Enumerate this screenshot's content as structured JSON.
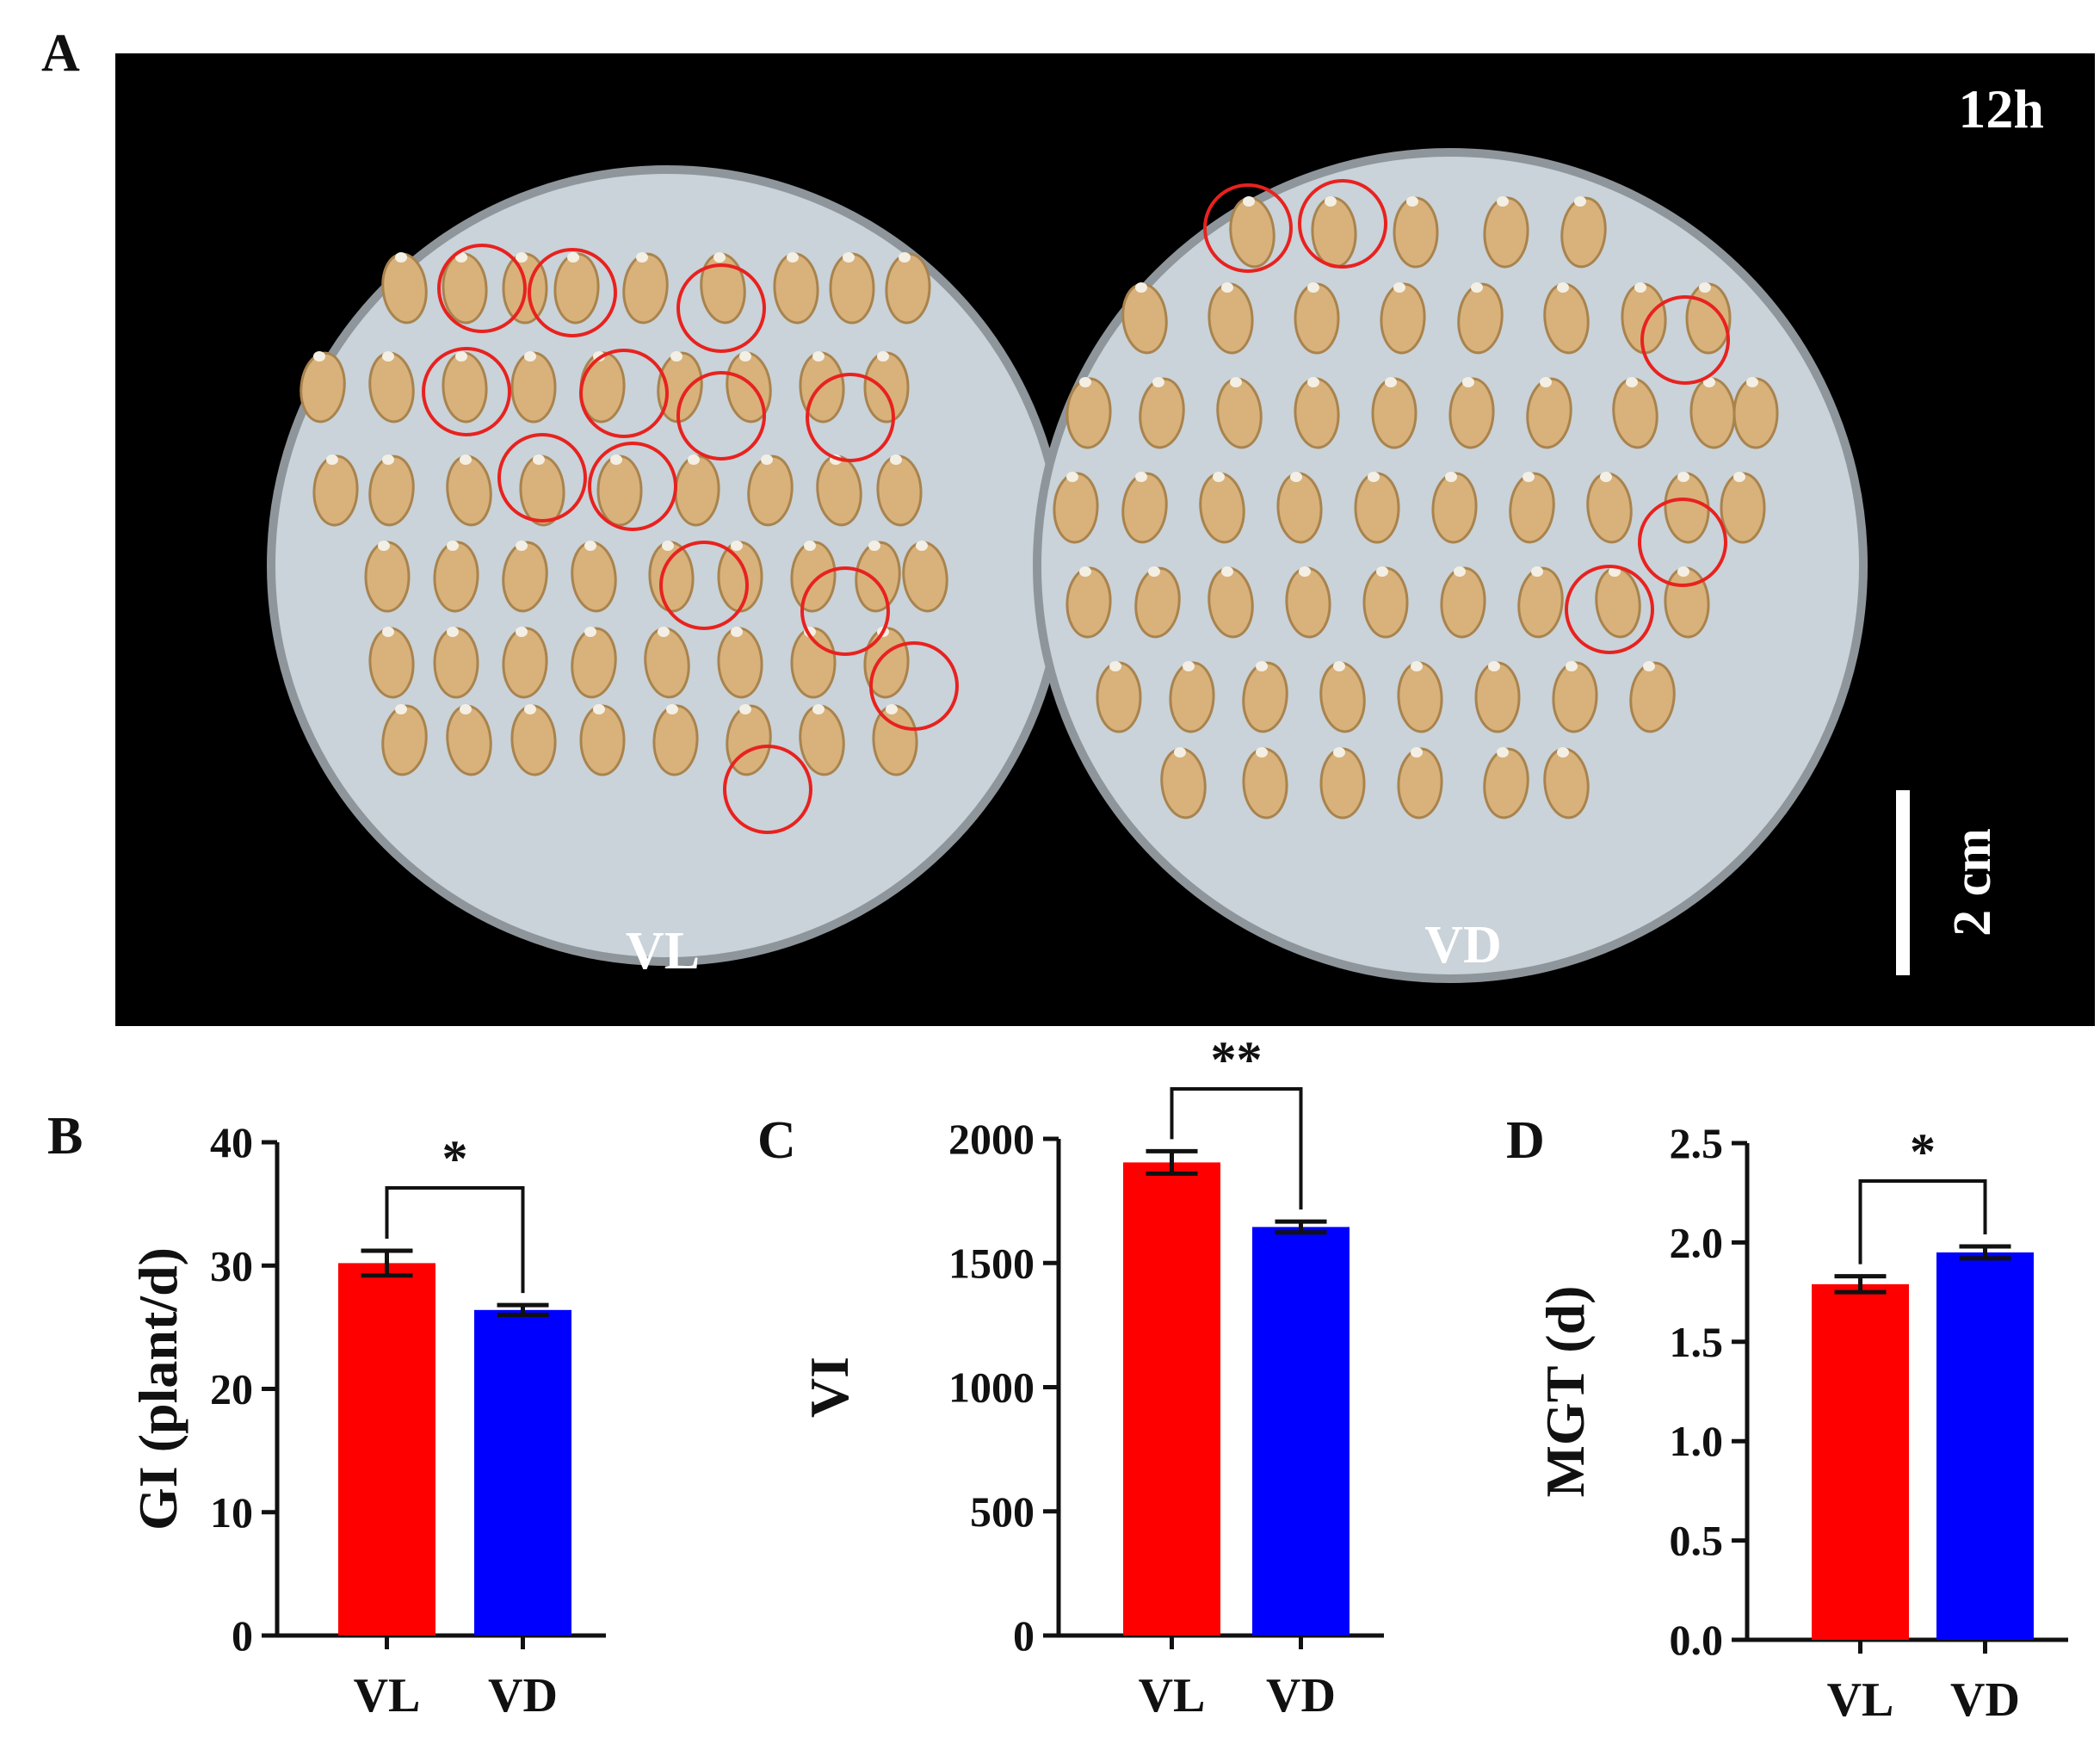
{
  "figure": {
    "panel_labels": [
      "A",
      "B",
      "C",
      "D"
    ],
    "photo": {
      "time_label": "12h",
      "dish_labels": [
        "VL",
        "VD"
      ],
      "scale_bar_label": "2 cm",
      "colors": {
        "background": "#000000",
        "dish": "#c9d3d9",
        "seed": "#d8b27a",
        "circle": "#e8221f"
      }
    }
  },
  "chart_data": [
    {
      "panel": "B",
      "type": "bar",
      "categories": [
        "VL",
        "VD"
      ],
      "values": [
        30.2,
        26.4
      ],
      "errors": [
        1.0,
        0.4
      ],
      "colors": [
        "#ff0000",
        "#0000ff"
      ],
      "ylabel": "GI (plant/d)",
      "xlabel": "",
      "ylim": [
        0,
        40
      ],
      "yticks": [
        0,
        10,
        20,
        30,
        40
      ],
      "significance": "*"
    },
    {
      "panel": "C",
      "type": "bar",
      "categories": [
        "VL",
        "VD"
      ],
      "values": [
        1905,
        1645
      ],
      "errors": [
        45,
        22
      ],
      "colors": [
        "#ff0000",
        "#0000ff"
      ],
      "ylabel": "VI",
      "xlabel": "",
      "ylim": [
        0,
        2000
      ],
      "yticks": [
        0,
        500,
        1000,
        1500,
        2000
      ],
      "significance": "**"
    },
    {
      "panel": "D",
      "type": "bar",
      "categories": [
        "VL",
        "VD"
      ],
      "values": [
        1.79,
        1.95
      ],
      "errors": [
        0.04,
        0.03
      ],
      "colors": [
        "#ff0000",
        "#0000ff"
      ],
      "ylabel": "MGT (d)",
      "xlabel": "",
      "ylim": [
        0,
        2.5
      ],
      "yticks": [
        "0.0",
        "0.5",
        "1.0",
        "1.5",
        "2.0",
        "2.5"
      ],
      "significance": "*"
    }
  ]
}
